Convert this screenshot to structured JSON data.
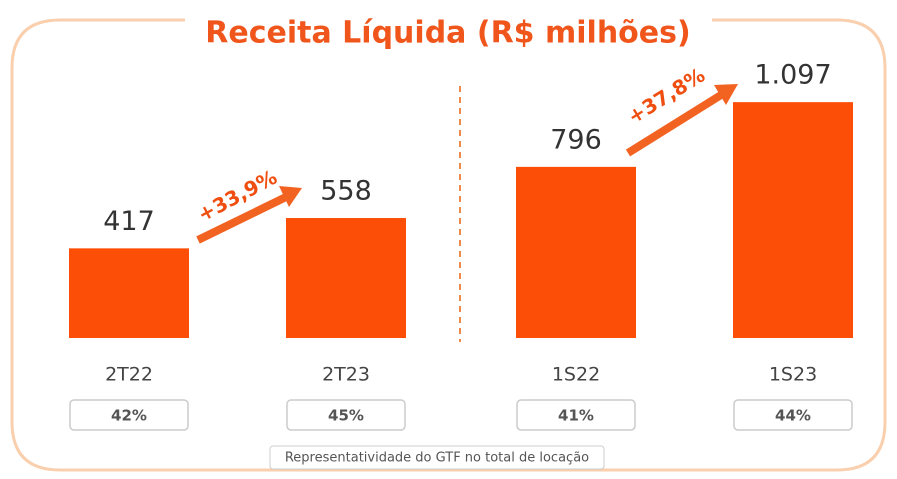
{
  "chart_data": {
    "type": "bar",
    "title": "Receita Líquida (R$ milhões)",
    "categories": [
      "2T22",
      "2T23",
      "1S22",
      "1S23"
    ],
    "values": [
      417,
      558,
      796,
      1097
    ],
    "value_labels": [
      "417",
      "558",
      "796",
      "1.097"
    ],
    "color": "#fc4e07",
    "ylim": [
      0,
      1200
    ],
    "annotations": [
      "+33,9%",
      "+37,8%"
    ],
    "share_labels": [
      "42%",
      "45%",
      "41%",
      "44%"
    ],
    "footnote": "Representatividade do GTF no total de locação"
  }
}
